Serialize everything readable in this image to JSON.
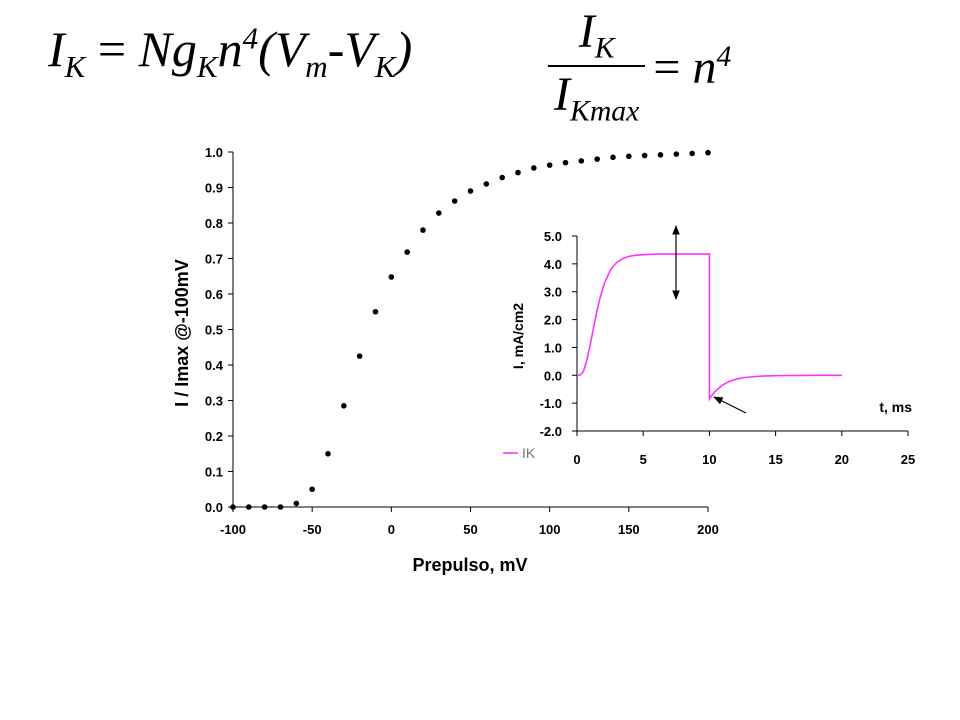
{
  "equations": {
    "eq1": {
      "lhs": "I",
      "lhs_sub": "K",
      "eq": "=",
      "N": "N",
      "g": "g",
      "g_sub": "K",
      "n": "n",
      "n_sup": "4",
      "open": "(",
      "V": "V",
      "V_sub": "m",
      "minus": "-",
      "V2": "V",
      "V2_sub": "K",
      "close": ")"
    },
    "eq2": {
      "num": "I",
      "num_sub": "K",
      "den": "I",
      "den_sub": "Kmax",
      "eq": "=",
      "n": "n",
      "n_sup": "4"
    }
  },
  "chart_data": [
    {
      "type": "scatter",
      "title": "",
      "xlabel": "Prepulso, mV",
      "ylabel": "I / Imax @-100mV",
      "xlim": [
        -100,
        200
      ],
      "ylim": [
        0,
        1.0
      ],
      "xticks": [
        "-100",
        "-50",
        "0",
        "50",
        "100",
        "150",
        "200"
      ],
      "yticks": [
        "0.0",
        "0.1",
        "0.2",
        "0.3",
        "0.4",
        "0.5",
        "0.6",
        "0.7",
        "0.8",
        "0.9",
        "1.0"
      ],
      "grid": false,
      "marker_color": "#000000",
      "series": [
        {
          "x": [
            -100,
            -90,
            -80,
            -70,
            -60,
            -50,
            -40,
            -30,
            -20,
            -10,
            0,
            10,
            20,
            30,
            40,
            50,
            60,
            70,
            80,
            90,
            100,
            110,
            120,
            130,
            140,
            150,
            160,
            170,
            180,
            190,
            200
          ],
          "y": [
            0.0,
            0.0,
            0.0,
            0.0,
            0.01,
            0.05,
            0.15,
            0.285,
            0.425,
            0.55,
            0.648,
            0.718,
            0.78,
            0.828,
            0.862,
            0.89,
            0.91,
            0.928,
            0.942,
            0.955,
            0.963,
            0.97,
            0.975,
            0.98,
            0.985,
            0.988,
            0.99,
            0.992,
            0.994,
            0.996,
            0.998
          ]
        }
      ]
    },
    {
      "type": "line",
      "title": "",
      "xlabel": "t, ms",
      "ylabel": "I, mA/cm2",
      "xlim": [
        0,
        25
      ],
      "ylim": [
        -2.0,
        5.0
      ],
      "xticks": [
        "0",
        "5",
        "10",
        "15",
        "20",
        "25"
      ],
      "yticks": [
        "-2.0",
        "-1.0",
        "0.0",
        "1.0",
        "2.0",
        "3.0",
        "4.0",
        "5.0"
      ],
      "grid": false,
      "legend": {
        "position": "bottom-left",
        "entries": [
          "IK"
        ]
      },
      "series": [
        {
          "name": "IK",
          "color": "#ff33ff",
          "x": [
            0,
            0.25,
            0.5,
            0.75,
            1,
            1.25,
            1.5,
            1.75,
            2,
            2.25,
            2.5,
            2.75,
            3,
            3.5,
            4,
            4.5,
            5,
            6,
            7,
            8,
            9,
            10,
            10,
            10.25,
            10.5,
            11,
            11.5,
            12,
            12.5,
            13,
            14,
            15,
            16,
            17,
            18,
            19,
            20
          ],
          "y": [
            0,
            0.01,
            0.15,
            0.55,
            1.1,
            1.7,
            2.3,
            2.8,
            3.2,
            3.5,
            3.75,
            3.92,
            4.05,
            4.2,
            4.28,
            4.31,
            4.33,
            4.35,
            4.35,
            4.35,
            4.35,
            4.35,
            -0.85,
            -0.68,
            -0.55,
            -0.35,
            -0.22,
            -0.14,
            -0.09,
            -0.06,
            -0.03,
            -0.015,
            -0.008,
            -0.004,
            -0.002,
            -0.001,
            0
          ]
        }
      ]
    }
  ]
}
